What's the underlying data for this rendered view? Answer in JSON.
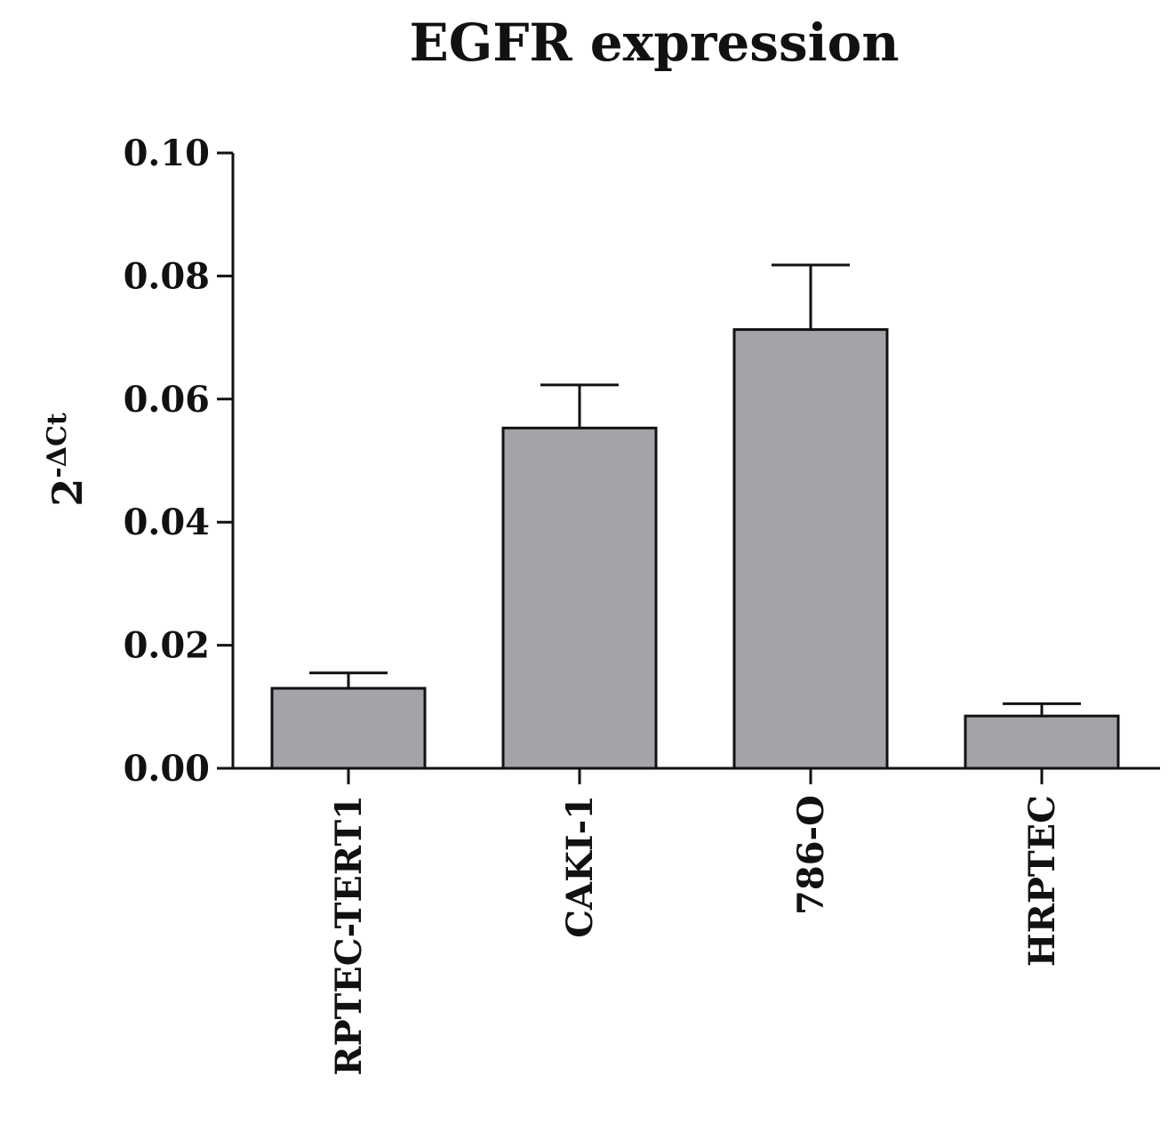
{
  "chart_data": {
    "type": "bar",
    "title": "EGFR expression",
    "ylabel": {
      "base": "2",
      "superscript": "-ΔCt"
    },
    "xlabel": "",
    "categories": [
      "RPTEC-TERT1",
      "CAKI-1",
      "786-O",
      "HRPTEC"
    ],
    "values": [
      0.013,
      0.0553,
      0.0713,
      0.0085
    ],
    "error_upper": [
      0.0155,
      0.0623,
      0.0818,
      0.0105
    ],
    "ylim": [
      0,
      0.1
    ],
    "yticks": [
      "0.00",
      "0.02",
      "0.04",
      "0.06",
      "0.08",
      "0.10"
    ],
    "ytick_values": [
      0,
      0.02,
      0.04,
      0.06,
      0.08,
      0.1
    ],
    "bar_color": "#a3a3a8",
    "bar_edge_color": "#111111",
    "grid": false,
    "legend": "none"
  }
}
